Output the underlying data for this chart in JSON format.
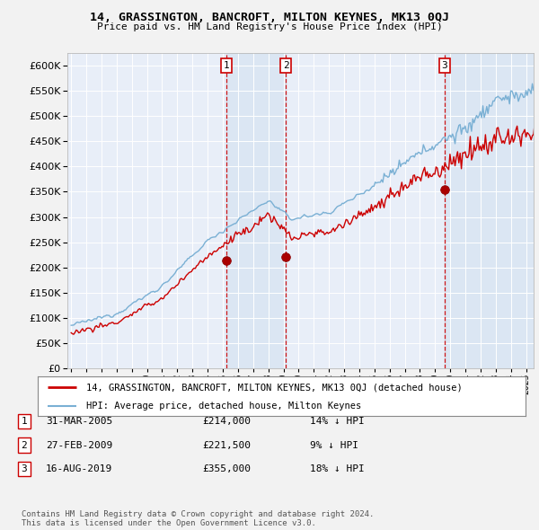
{
  "title": "14, GRASSINGTON, BANCROFT, MILTON KEYNES, MK13 0QJ",
  "subtitle": "Price paid vs. HM Land Registry's House Price Index (HPI)",
  "background_color": "#f0f0f0",
  "plot_bg_color": "#e8eef8",
  "grid_color": "#ffffff",
  "shade_color": "#d0dff0",
  "ylim": [
    0,
    625000
  ],
  "yticks": [
    0,
    50000,
    100000,
    150000,
    200000,
    250000,
    300000,
    350000,
    400000,
    450000,
    500000,
    550000,
    600000
  ],
  "xlim_start": 1994.75,
  "xlim_end": 2025.5,
  "sale_dates": [
    2005.25,
    2009.15,
    2019.62
  ],
  "sale_prices": [
    214000,
    221500,
    355000
  ],
  "sale_labels": [
    "1",
    "2",
    "3"
  ],
  "legend_entries": [
    {
      "label": "14, GRASSINGTON, BANCROFT, MILTON KEYNES, MK13 0QJ (detached house)",
      "color": "#cc0000",
      "lw": 2
    },
    {
      "label": "HPI: Average price, detached house, Milton Keynes",
      "color": "#7ab0d4",
      "lw": 1.5
    }
  ],
  "table_rows": [
    {
      "num": "1",
      "date": "31-MAR-2005",
      "price": "£214,000",
      "change": "14% ↓ HPI"
    },
    {
      "num": "2",
      "date": "27-FEB-2009",
      "price": "£221,500",
      "change": "9% ↓ HPI"
    },
    {
      "num": "3",
      "date": "16-AUG-2019",
      "price": "£355,000",
      "change": "18% ↓ HPI"
    }
  ],
  "footnote": "Contains HM Land Registry data © Crown copyright and database right 2024.\nThis data is licensed under the Open Government Licence v3.0.",
  "hpi_color": "#7ab0d4",
  "sold_color": "#cc0000",
  "vline_color": "#cc0000",
  "marker_color": "#aa0000"
}
